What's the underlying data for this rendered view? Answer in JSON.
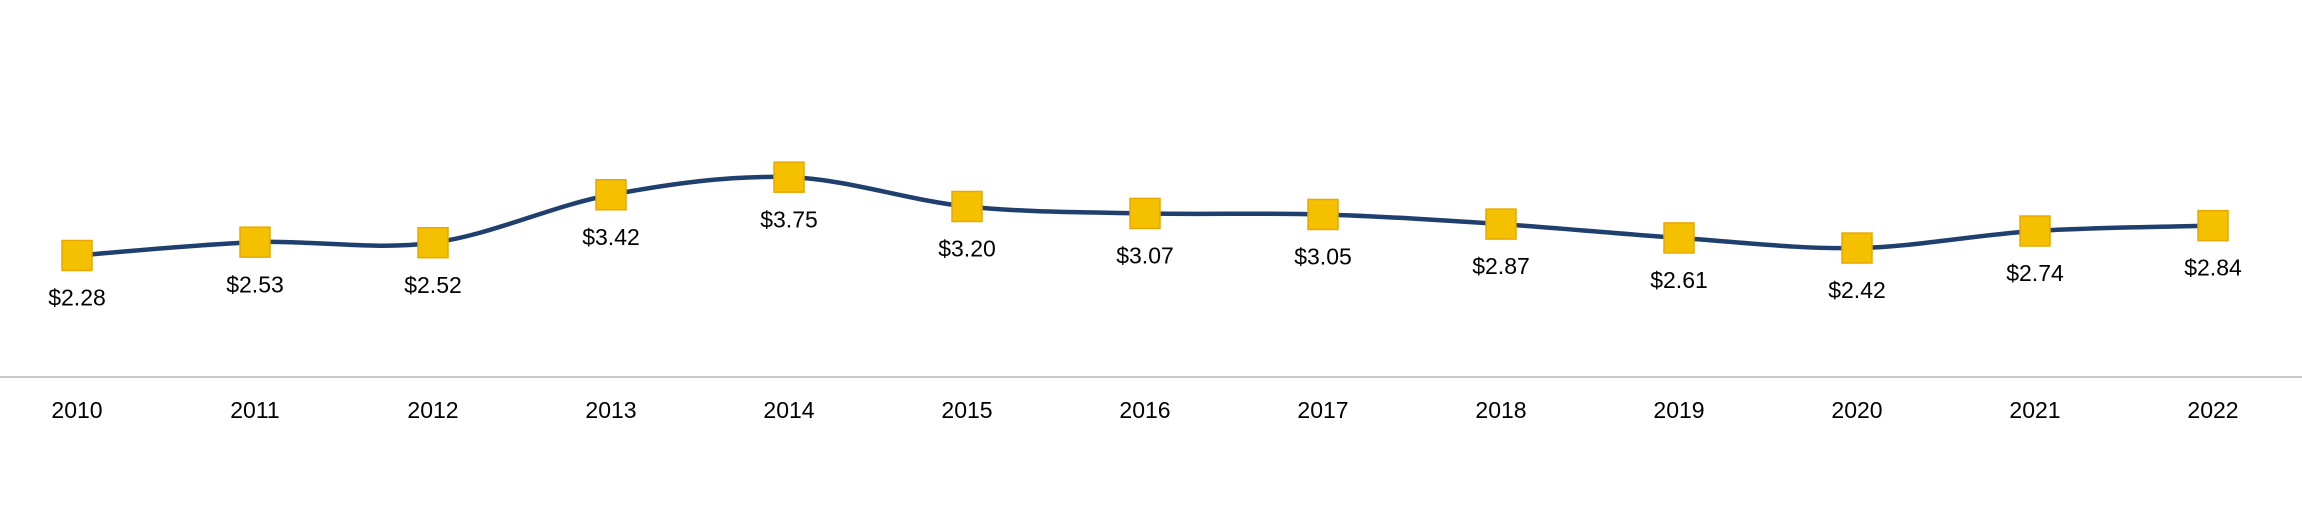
{
  "chart_data": {
    "type": "line",
    "categories": [
      "2010",
      "2011",
      "2012",
      "2013",
      "2014",
      "2015",
      "2016",
      "2017",
      "2018",
      "2019",
      "2020",
      "2021",
      "2022"
    ],
    "values": [
      2.28,
      2.53,
      2.52,
      3.42,
      3.75,
      3.2,
      3.07,
      3.05,
      2.87,
      2.61,
      2.42,
      2.74,
      2.84
    ],
    "value_labels": [
      "$2.28",
      "$2.53",
      "$2.52",
      "$3.42",
      "$3.75",
      "$3.20",
      "$3.07",
      "$3.05",
      "$2.87",
      "$2.61",
      "$2.42",
      "$2.74",
      "$2.84"
    ],
    "color": "#1f3f6e",
    "marker_color": "#f5c000",
    "ylim": [
      0,
      7
    ],
    "smooth": true
  }
}
